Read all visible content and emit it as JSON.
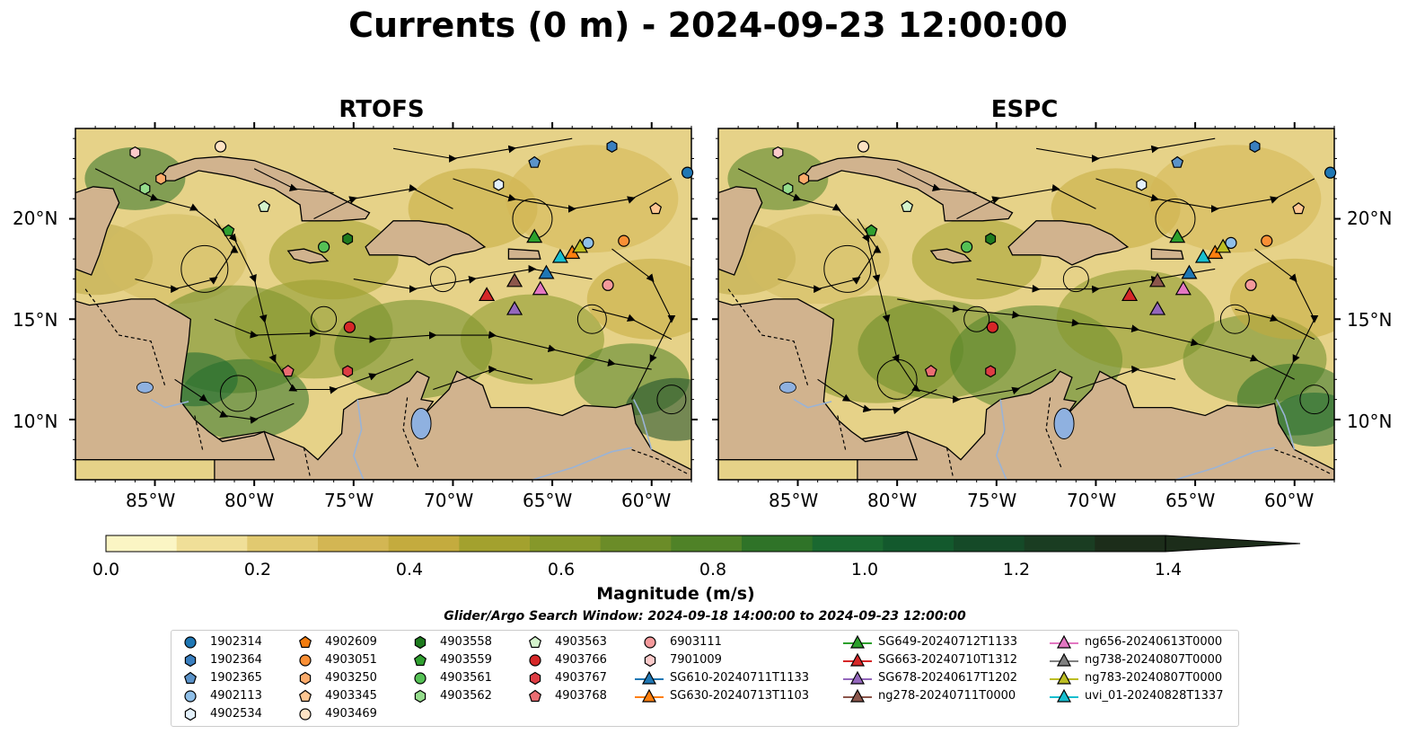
{
  "figure": {
    "title": "Currents (0 m) - 2024-09-23 12:00:00",
    "panels": [
      {
        "name": "RTOFS"
      },
      {
        "name": "ESPC"
      }
    ],
    "lon_ticks": [
      "85°W",
      "80°W",
      "75°W",
      "70°W",
      "65°W",
      "60°W"
    ],
    "lat_ticks": [
      "20°N",
      "15°N",
      "10°N"
    ],
    "extent": {
      "lon": [
        -89,
        -58
      ],
      "lat": [
        7,
        24.5
      ]
    }
  },
  "colorbar": {
    "label": "Magnitude (m/s)",
    "ticks": [
      "0.0",
      "0.2",
      "0.4",
      "0.6",
      "0.8",
      "1.0",
      "1.2",
      "1.4"
    ],
    "range": [
      0,
      1.5
    ],
    "extend": "max",
    "colors": [
      "#fbf5c4",
      "#f0df98",
      "#e1c970",
      "#d3b653",
      "#c4ab3e",
      "#a3a12e",
      "#86982a",
      "#6b8c28",
      "#4f8227",
      "#2f7328",
      "#1a6830",
      "#13592d",
      "#154a28",
      "#1a3d22",
      "#1c2d1a"
    ]
  },
  "search_window": "Glider/Argo Search Window: 2024-09-18 14:00:00 to 2024-09-23 12:00:00",
  "legend": {
    "columns": [
      [
        {
          "label": "1902314",
          "marker": "circle",
          "color": "#1f77b4"
        },
        {
          "label": "1902364",
          "marker": "hexagon",
          "color": "#3a7fbf"
        },
        {
          "label": "1902365",
          "marker": "pentagon",
          "color": "#5b93c9"
        },
        {
          "label": "4902113",
          "marker": "circle",
          "color": "#8fbfe8"
        },
        {
          "label": "4902534",
          "marker": "hexagon",
          "color": "#e3f0fb"
        }
      ],
      [
        {
          "label": "4902609",
          "marker": "pentagon",
          "color": "#f27c0f"
        },
        {
          "label": "4903051",
          "marker": "circle",
          "color": "#fa8f35"
        },
        {
          "label": "4903250",
          "marker": "hexagon",
          "color": "#fcab6b"
        },
        {
          "label": "4903345",
          "marker": "pentagon",
          "color": "#fdc692"
        },
        {
          "label": "4903469",
          "marker": "circle",
          "color": "#fee3c4"
        }
      ],
      [
        {
          "label": "4903558",
          "marker": "hexagon",
          "color": "#1e7a1e"
        },
        {
          "label": "4903559",
          "marker": "pentagon",
          "color": "#30a030"
        },
        {
          "label": "4903561",
          "marker": "circle",
          "color": "#55c155"
        },
        {
          "label": "4903562",
          "marker": "hexagon",
          "color": "#95dc8c"
        },
        {
          "label": "4903563",
          "marker": "pentagon",
          "color": "#d4f3cc"
        }
      ],
      [
        {
          "label": "4903766",
          "marker": "circle",
          "color": "#d62728"
        },
        {
          "label": "4903767",
          "marker": "hexagon",
          "color": "#de3d44"
        },
        {
          "label": "4903768",
          "marker": "pentagon",
          "color": "#ea6d72"
        },
        {
          "label": "6903111",
          "marker": "circle",
          "color": "#f4999b"
        },
        {
          "label": "7901009",
          "marker": "hexagon",
          "color": "#fbcaca"
        }
      ],
      [
        {
          "label": "SG649-20240712T1133",
          "marker": "triangle",
          "color": "#2ca02c"
        },
        {
          "label": "SG663-20240710T1312",
          "marker": "triangle",
          "color": "#d62728"
        },
        {
          "label": "SG678-20240617T1202",
          "marker": "triangle",
          "color": "#9467bd"
        },
        {
          "label": "ng278-20240711T0000",
          "marker": "triangle",
          "color": "#8c564b"
        }
      ],
      [
        {
          "label": "ng656-20240613T0000",
          "marker": "triangle",
          "color": "#e377c2"
        },
        {
          "label": "ng738-20240807T0000",
          "marker": "triangle",
          "color": "#7f7f7f"
        },
        {
          "label": "ng783-20240807T0000",
          "marker": "triangle",
          "color": "#bcbd22"
        },
        {
          "label": "uvi_01-20240828T1337",
          "marker": "triangle",
          "color": "#17becf"
        }
      ]
    ],
    "extra_col3": [
      {
        "label": "SG610-20240711T1133",
        "marker": "triangle",
        "color": "#1f77b4"
      },
      {
        "label": "SG630-20240713T1103",
        "marker": "triangle",
        "color": "#ff7f0e"
      }
    ]
  },
  "map_colors": {
    "land": "#d1b38e",
    "lakes": "#8fb1e0",
    "rivers": "#9ab3d6"
  },
  "markers": {
    "RTOFS": [
      {
        "id": "1902314",
        "lon": -58.2,
        "lat": 22.3
      },
      {
        "id": "1902364",
        "lon": -62.0,
        "lat": 23.6
      },
      {
        "id": "1902365",
        "lon": -65.9,
        "lat": 22.8
      },
      {
        "id": "4902534",
        "lon": -67.7,
        "lat": 21.7
      },
      {
        "id": "4902113",
        "lon": -63.2,
        "lat": 18.8
      },
      {
        "id": "4903051",
        "lon": -61.4,
        "lat": 18.9
      },
      {
        "id": "4903345",
        "lon": -59.8,
        "lat": 20.5
      },
      {
        "id": "4903469",
        "lon": -81.7,
        "lat": 23.6
      },
      {
        "id": "7901009",
        "lon": -86.0,
        "lat": 23.3
      },
      {
        "id": "4903250",
        "lon": -84.7,
        "lat": 22.0
      },
      {
        "id": "4903562",
        "lon": -85.5,
        "lat": 21.5
      },
      {
        "id": "4903563",
        "lon": -79.5,
        "lat": 20.6
      },
      {
        "id": "4903559",
        "lon": -81.3,
        "lat": 19.4
      },
      {
        "id": "4903561",
        "lon": -76.5,
        "lat": 18.6
      },
      {
        "id": "4903558",
        "lon": -75.3,
        "lat": 19.0
      },
      {
        "id": "6903111",
        "lon": -62.2,
        "lat": 16.7
      },
      {
        "id": "4903766",
        "lon": -75.2,
        "lat": 14.6
      },
      {
        "id": "4903768",
        "lon": -78.3,
        "lat": 12.4
      },
      {
        "id": "4903767",
        "lon": -75.3,
        "lat": 12.4
      }
    ],
    "ESPC": [
      {
        "id": "1902314",
        "lon": -58.2,
        "lat": 22.3
      },
      {
        "id": "1902364",
        "lon": -62.0,
        "lat": 23.6
      },
      {
        "id": "1902365",
        "lon": -65.9,
        "lat": 22.8
      },
      {
        "id": "4902534",
        "lon": -67.7,
        "lat": 21.7
      },
      {
        "id": "4902113",
        "lon": -63.2,
        "lat": 18.8
      },
      {
        "id": "4903051",
        "lon": -61.4,
        "lat": 18.9
      },
      {
        "id": "4903345",
        "lon": -59.8,
        "lat": 20.5
      },
      {
        "id": "4903469",
        "lon": -81.7,
        "lat": 23.6
      },
      {
        "id": "7901009",
        "lon": -86.0,
        "lat": 23.3
      },
      {
        "id": "4903250",
        "lon": -84.7,
        "lat": 22.0
      },
      {
        "id": "4903562",
        "lon": -85.5,
        "lat": 21.5
      },
      {
        "id": "4903563",
        "lon": -79.5,
        "lat": 20.6
      },
      {
        "id": "4903559",
        "lon": -81.3,
        "lat": 19.4
      },
      {
        "id": "4903561",
        "lon": -76.5,
        "lat": 18.6
      },
      {
        "id": "4903558",
        "lon": -75.3,
        "lat": 19.0
      },
      {
        "id": "6903111",
        "lon": -62.2,
        "lat": 16.7
      },
      {
        "id": "4903766",
        "lon": -75.2,
        "lat": 14.6
      },
      {
        "id": "4903768",
        "lon": -78.3,
        "lat": 12.4
      },
      {
        "id": "4903767",
        "lon": -75.3,
        "lat": 12.4
      }
    ],
    "gliders": [
      {
        "id": "SG649-20240712T1133",
        "lon": -65.9,
        "lat": 19.1
      },
      {
        "id": "SG610-20240711T1133",
        "lon": -65.3,
        "lat": 17.3
      },
      {
        "id": "uvi_01-20240828T1337",
        "lon": -64.6,
        "lat": 18.1
      },
      {
        "id": "SG630-20240713T1103",
        "lon": -64.0,
        "lat": 18.3
      },
      {
        "id": "ng783-20240807T0000",
        "lon": -63.6,
        "lat": 18.6
      },
      {
        "id": "SG663-20240710T1312",
        "lon": -68.3,
        "lat": 16.2
      },
      {
        "id": "ng278-20240711T0000",
        "lon": -66.9,
        "lat": 16.9
      },
      {
        "id": "SG678-20240617T1202",
        "lon": -66.9,
        "lat": 15.5
      },
      {
        "id": "ng656-20240613T0000",
        "lon": -65.6,
        "lat": 16.5
      }
    ]
  }
}
